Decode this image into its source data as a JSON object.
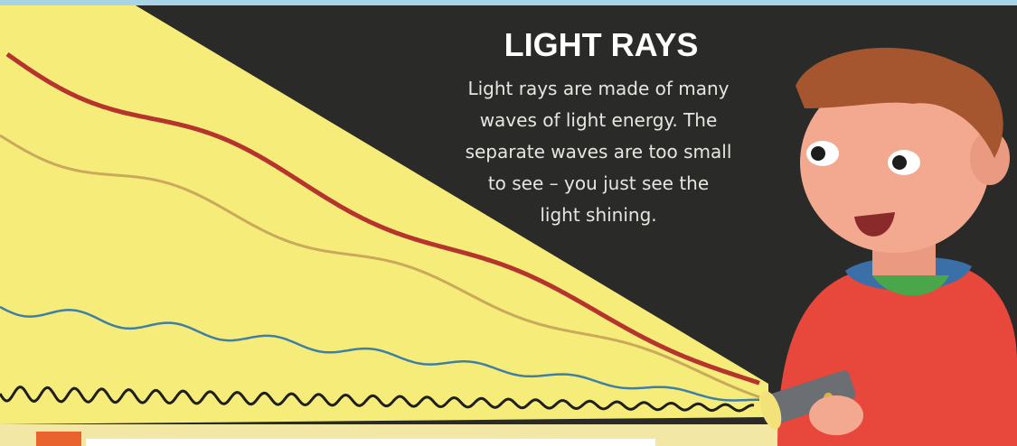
{
  "header": {
    "title": "LIGHT RAYS"
  },
  "body": {
    "lines": [
      "Light rays are made of many",
      "waves of light energy. The",
      "separate waves are too small",
      "to see – you just see the",
      "light shining."
    ]
  }
}
